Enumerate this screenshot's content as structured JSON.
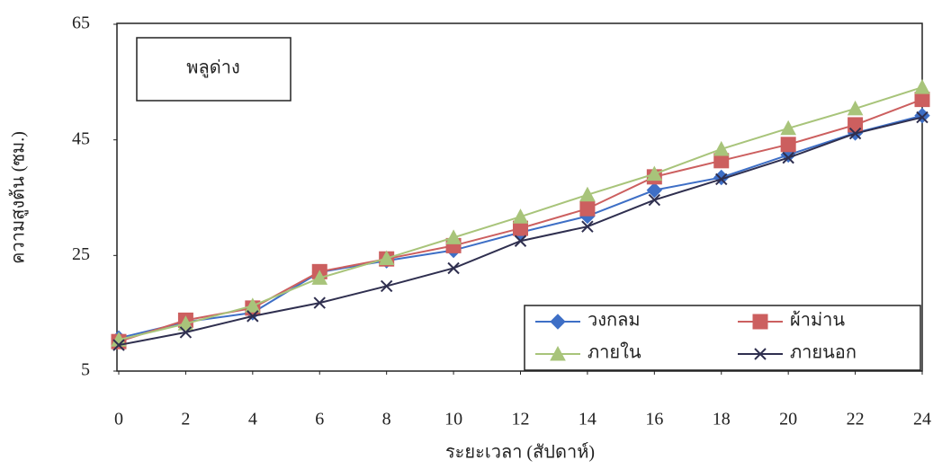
{
  "chart_data": {
    "type": "line",
    "annotation": "พลูด่าง",
    "x_label": "ระยะเวลา (สัปดาห์)",
    "y_label": "ความสูงต้น (ซม.)",
    "x": [
      0,
      2,
      4,
      6,
      8,
      10,
      12,
      14,
      16,
      18,
      20,
      22,
      24
    ],
    "xlim": [
      0,
      24
    ],
    "xticks": [
      0,
      2,
      4,
      6,
      8,
      10,
      12,
      14,
      16,
      18,
      20,
      22,
      24
    ],
    "ylim": [
      5,
      65
    ],
    "yticks": [
      5,
      25,
      45,
      65
    ],
    "series": [
      {
        "name": "วงกลม",
        "color": "#3e6fc6",
        "marker": "diamond",
        "values": [
          10.7,
          13.5,
          15.1,
          22.1,
          24.1,
          25.9,
          29,
          31.8,
          36.3,
          38.5,
          42.4,
          46.2,
          49.2
        ]
      },
      {
        "name": "ผ้าม่าน",
        "color": "#cc5f5f",
        "marker": "square",
        "values": [
          10.1,
          13.8,
          15.9,
          22.2,
          24.4,
          26.7,
          29.7,
          33.1,
          38.6,
          41.4,
          44.2,
          47.6,
          52
        ]
      },
      {
        "name": "ภายใน",
        "color": "#a8c47a",
        "marker": "triangle",
        "values": [
          10.4,
          13.2,
          16.3,
          21.1,
          24.5,
          28.1,
          31.7,
          35.5,
          39.1,
          43.4,
          47,
          50.4,
          54.1
        ]
      },
      {
        "name": "ภายนอก",
        "color": "#2f2f4f",
        "marker": "x",
        "values": [
          9.5,
          11.7,
          14.5,
          16.8,
          19.7,
          22.8,
          27.5,
          30,
          34.6,
          38.2,
          41.9,
          46.1,
          48.9
        ]
      }
    ]
  }
}
